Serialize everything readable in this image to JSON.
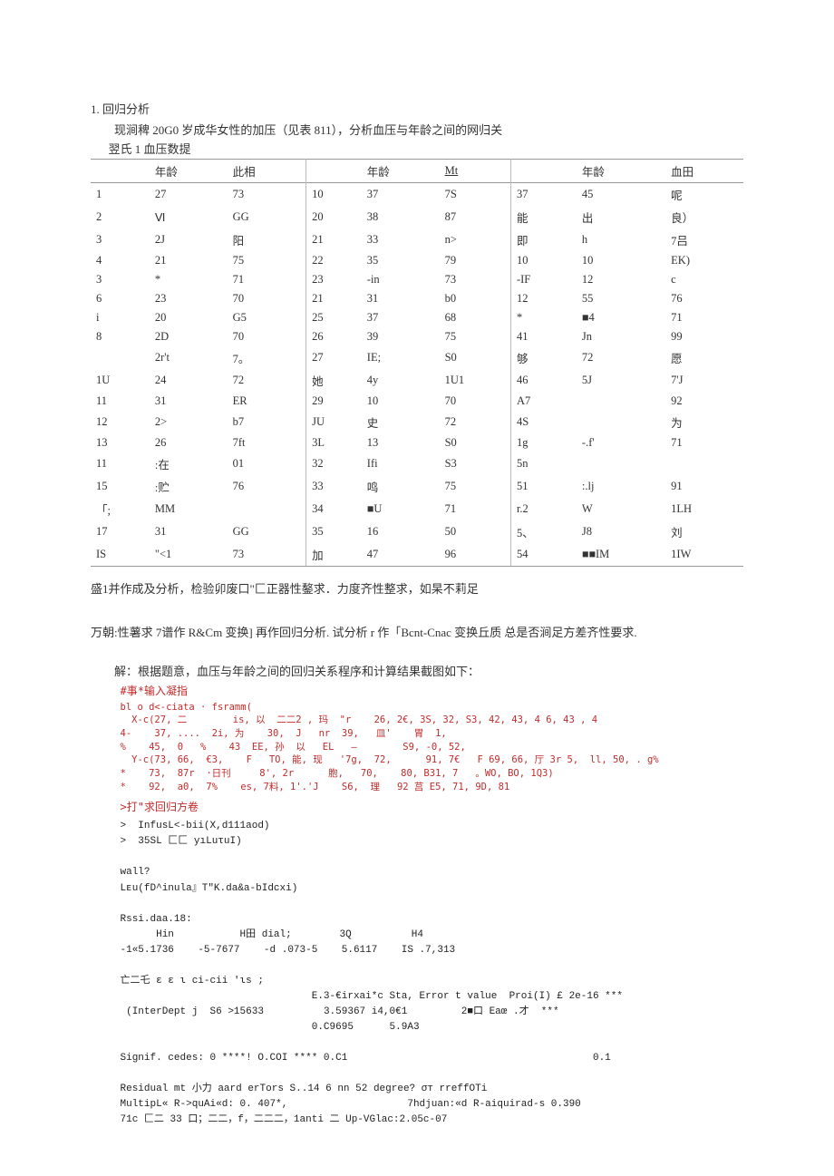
{
  "section_number": "1. 回归分析",
  "intro_line": "现涧稗 20G0 岁成华女性的加压（见表 811），分析血压与年龄之间的网归关",
  "table_caption": "翌氏 1 血压数提",
  "table": {
    "headers": {
      "g1_age": "年龄",
      "g1_val": "此相",
      "g2_age": "年龄",
      "g2_val": "Mt",
      "g3_age": "年龄",
      "g3_val": "血田"
    },
    "rows": [
      {
        "n1": "1",
        "a1": "27",
        "v1": "73",
        "n2": "10",
        "a2": "37",
        "v2": "7S",
        "n3": "37",
        "a3": "45",
        "v3": "呢"
      },
      {
        "n1": "2",
        "a1": "Ⅵ",
        "v1": "GG",
        "n2": "20",
        "a2": "38",
        "v2": "87",
        "n3": "能",
        "a3": "出",
        "v3": "良）"
      },
      {
        "n1": "3",
        "a1": "2J",
        "v1": "阳",
        "n2": "21",
        "a2": "33",
        "v2": "n>",
        "n3": "即",
        "a3": "h",
        "v3": "7吕"
      },
      {
        "n1": "4",
        "a1": "21",
        "v1": "75",
        "n2": "22",
        "a2": "35",
        "v2": "79",
        "n3": "10",
        "a3": "10",
        "v3": "EK)"
      },
      {
        "n1": "3",
        "a1": "*",
        "v1": "71",
        "n2": "23",
        "a2": "-in",
        "v2": "73",
        "n3": "-IF",
        "a3": "12",
        "v3": "c"
      },
      {
        "n1": "6",
        "a1": "23",
        "v1": "70",
        "n2": "21",
        "a2": "31",
        "v2": "b0",
        "n3": "12",
        "a3": "55",
        "v3": "76"
      },
      {
        "n1": "i",
        "a1": "20",
        "v1": "G5",
        "n2": "25",
        "a2": "37",
        "v2": "68",
        "n3": "*",
        "a3": "■4",
        "v3": "71"
      },
      {
        "n1": "8",
        "a1": "2D",
        "v1": "70",
        "n2": "26",
        "a2": "39",
        "v2": "75",
        "n3": "41",
        "a3": "Jn",
        "v3": "99"
      },
      {
        "n1": "",
        "a1": "2r't",
        "v1": "7。",
        "n2": "27",
        "a2": "IE;",
        "v2": "S0",
        "n3": "够",
        "a3": "72",
        "v3": "愿"
      },
      {
        "n1": "1U",
        "a1": "24",
        "v1": "72",
        "n2": "她",
        "a2": "4y",
        "v2": "1U1",
        "n3": "46",
        "a3": "5J",
        "v3": "7'J"
      },
      {
        "n1": "11",
        "a1": "31",
        "v1": "ER",
        "n2": "29",
        "a2": "10",
        "v2": "70",
        "n3": "A7",
        "a3": "",
        "v3": "92"
      },
      {
        "n1": "12",
        "a1": "2>",
        "v1": "b7",
        "n2": "JU",
        "a2": "史",
        "v2": "72",
        "n3": "4S",
        "a3": "",
        "v3": "为"
      },
      {
        "n1": "13",
        "a1": "26",
        "v1": "7ft",
        "n2": "3L",
        "a2": "13",
        "v2": "S0",
        "n3": "1g",
        "a3": "-.f'",
        "v3": "71"
      },
      {
        "n1": "11",
        "a1": ":在",
        "v1": "01",
        "n2": "32",
        "a2": "Ifi",
        "v2": "S3",
        "n3": "5n",
        "a3": "",
        "v3": ""
      },
      {
        "n1": "15",
        "a1": ":贮",
        "v1": "76",
        "n2": "33",
        "a2": "鸣",
        "v2": "75",
        "n3": "51",
        "a3": ":.lj",
        "v3": "91"
      },
      {
        "n1": "「;",
        "a1": "MM",
        "v1": "",
        "n2": "34",
        "a2": "■U",
        "v2": "71",
        "n3": "r.2",
        "a3": "W",
        "v3": "1LH"
      },
      {
        "n1": "17",
        "a1": "31",
        "v1": "GG",
        "n2": "35",
        "a2": "16",
        "v2": "50",
        "n3": "5、",
        "a3": "J8",
        "v3": "刘"
      },
      {
        "n1": "IS",
        "a1": "\"<1",
        "v1": "73",
        "n2": "加",
        "a2": "47",
        "v2": "96",
        "n3": "54",
        "a3": "■■IM",
        "v3": "1IW"
      }
    ]
  },
  "note1": "盛1并作成及分析，检验卯废口\"匚正器性鏊求．力度齐性整求，如杲不莉足",
  "note2": "万朝:性薯求 7谱作 R&Cm 变换] 再作回归分析. 试分析 r 作「Bcnt-Cnac 变换丘质 总是否涧足方差齐性要求.",
  "explain": "解：根据题意，血压与年龄之间的回归关系程序和计算结果截图如下：",
  "code_red_title": "#事*输入凝指",
  "code_red_body": "bl o d<-ciata · fsramm(\n  X-c(27, 二        is, 以  二二2 , 玛  \"r    26, 2€, 3S, 32, S3, 42, 43, 4 6, 43 , 4\n4-    37, ....  2i, 为    30,  J   nr  39,   皿'    胃  1, \n%    45,  0   %    43  EE, 孙  以   EL   —        S9, -0, 52,\n  Y-c(73, 66,  €3,    F   TO, 能, 现   '7g,  72,      91, 7€   F 69, 66, 厅 3r 5,  ll, 50, . g%\n*    73,  87r  ·日刊     8', 2r      胞,   70,    80, B31, 7   。WO, BO, 1Q3)\n*    92,  a0,  7%    es, 7料, 1'.'J    S6,  理   92 莒 E5, 71, 9D, 81",
  "code_red_sub": ">打\"求回归方卷",
  "code_block": ">  InfusL<-bii(X,d111aod)\n>  35SL 匚匚 yıLuτuI)\n\nwall?\nLᴇu(fD^inula』T\"K.da&a-bIdcxi)\n\nRssi.daa.18:\n      Hin           H田 dial;        3Q          H4\n-1«5.1736    -5-7677    -d .073-5    5.6117    IS .7,313\n\n亡二乇 ε ε ι ci-cii 'ιs ;\n                                E.3-€irxai*c Sta, Error t value  Proi(I) £ 2e-16 ***\n (InterDept j  S6 >15633          3.59367 i4,0€1         2■口 Eaœ .才  ***\n                                0.C9695      5.9A3\n\nSignif. cedes: 0 ****! O.COI **** 0.C1                                         0.1\n\nResidual mt 小力 aard erTors S..14 6 nn 52 degree? σт rreffOTi\nMultipL« R->quAi«d: 0. 407*,                    7hdjuan:«d R-aiquirad-s 0.390\n71c 匚二 33 口；二二，f，二二二，1anti 二 Up-VGlac:2.05c-07"
}
